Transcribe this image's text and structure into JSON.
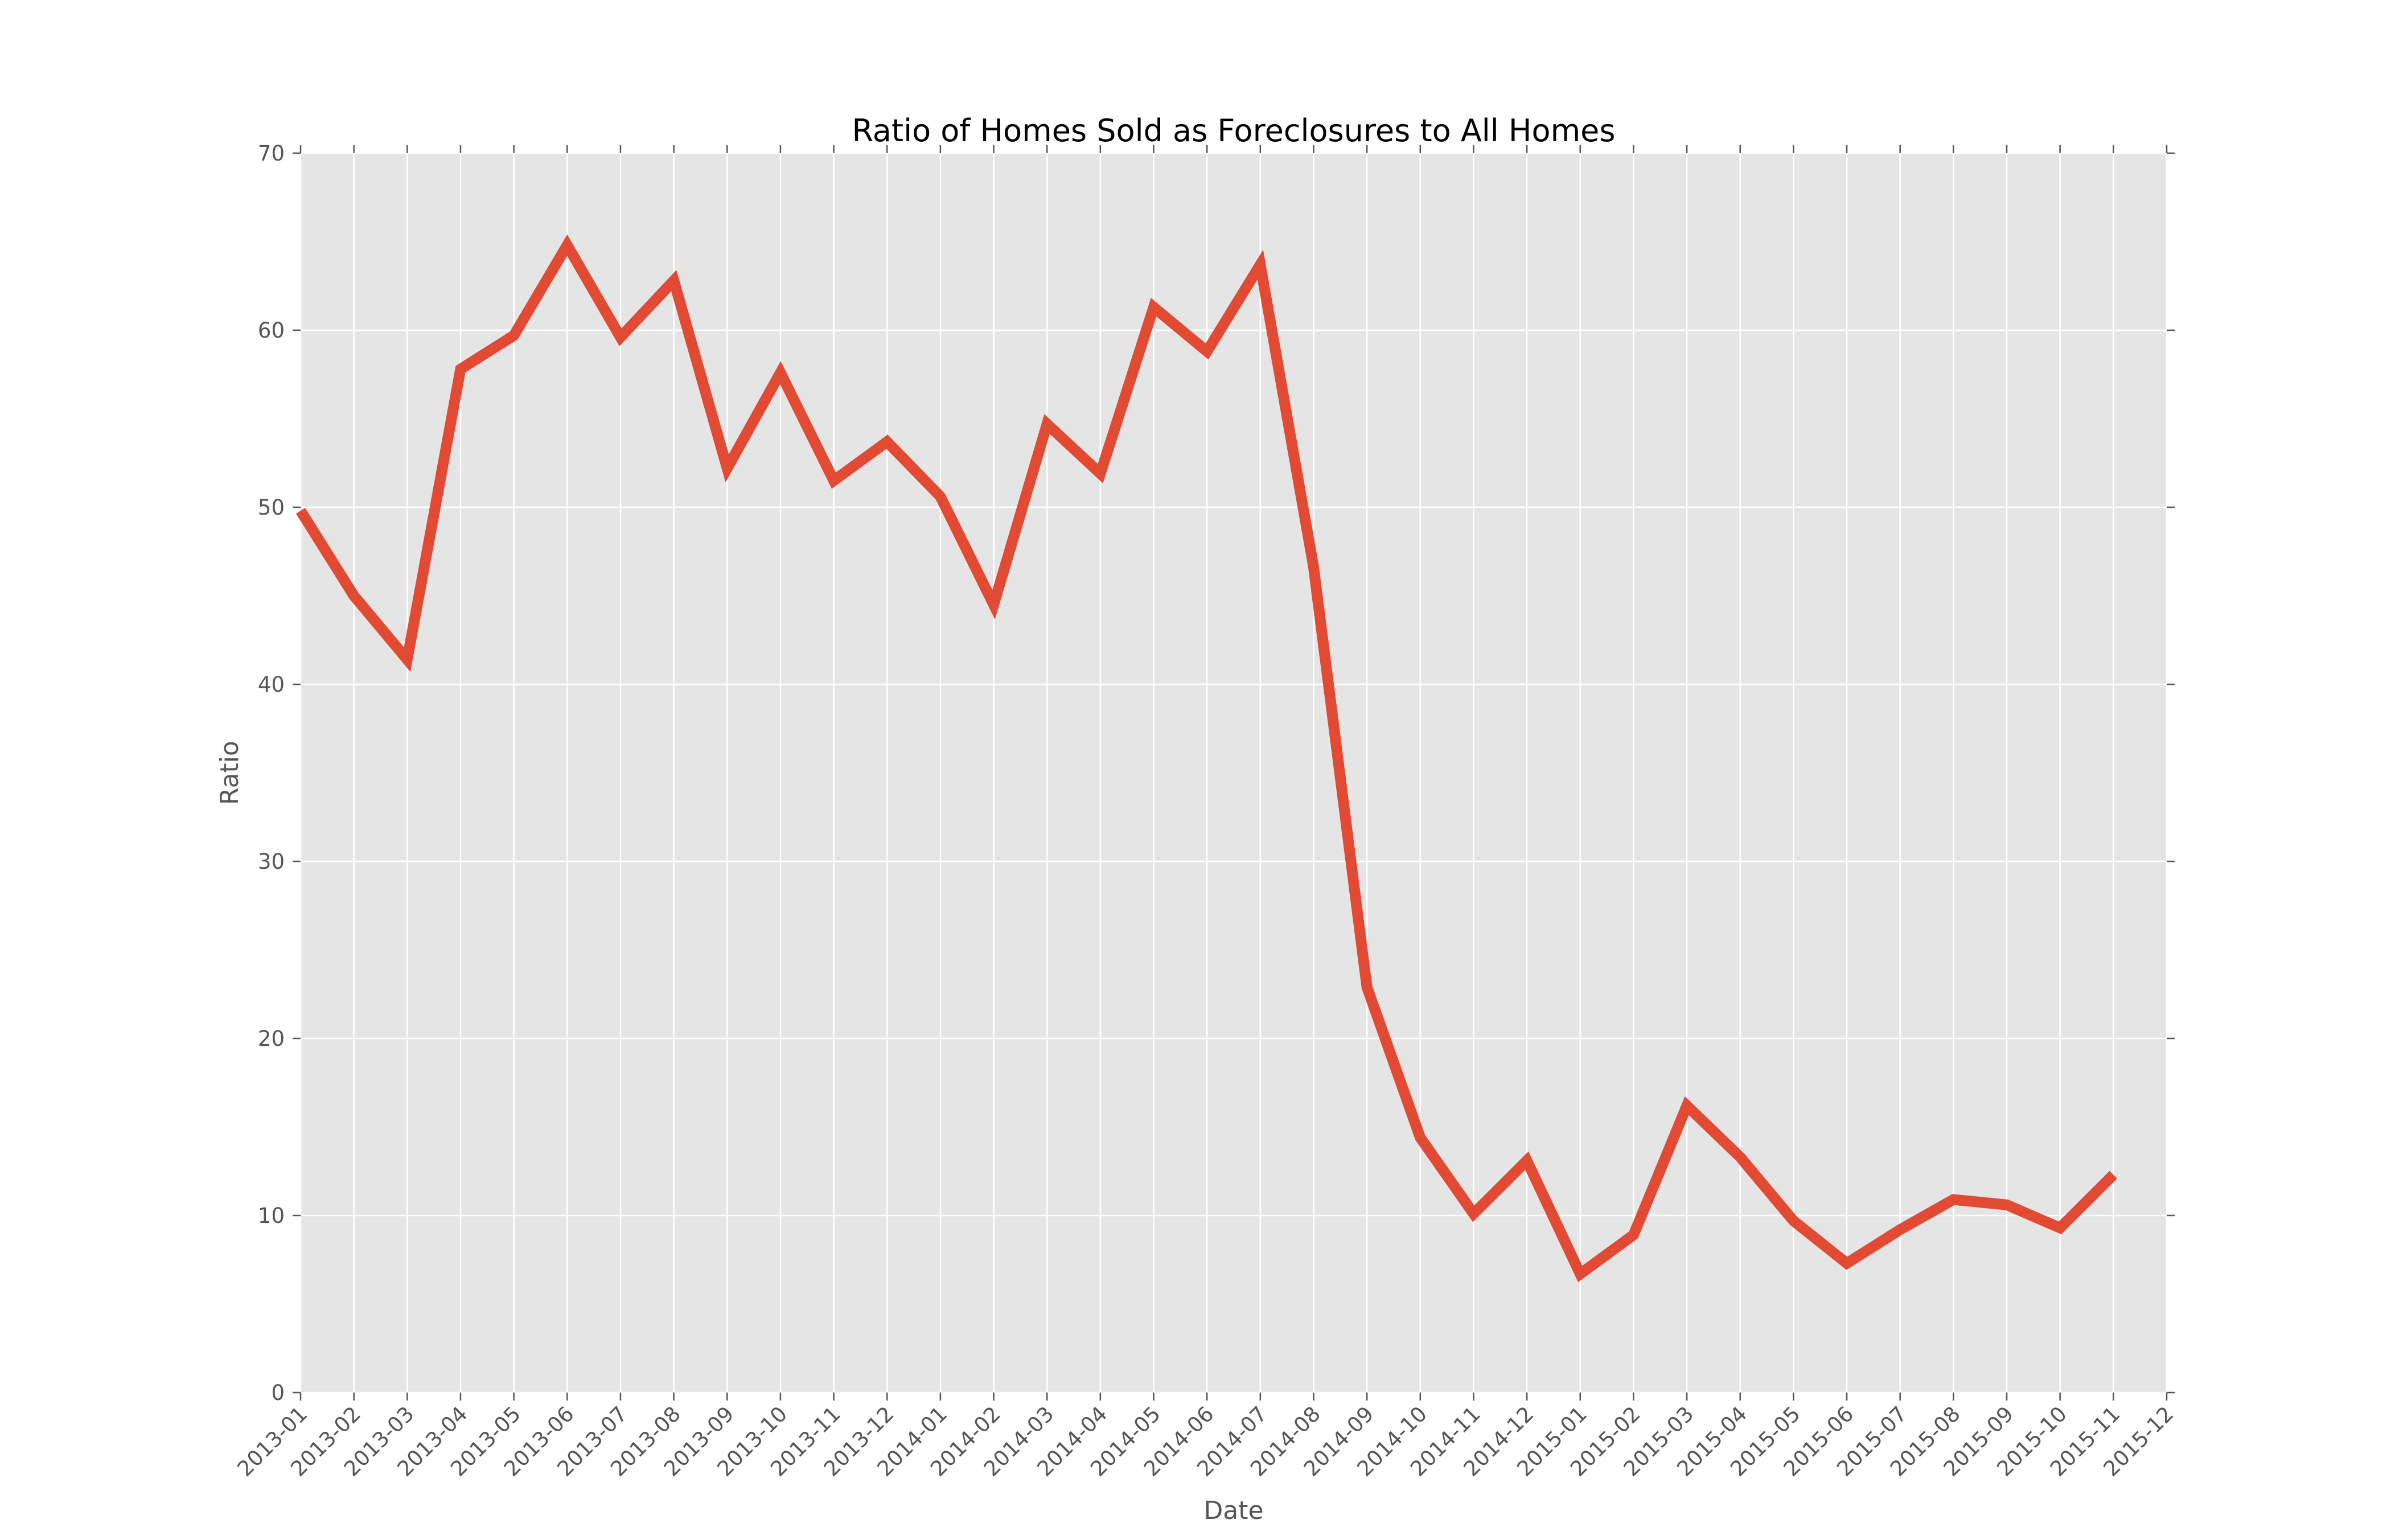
{
  "chart_data": {
    "type": "line",
    "title": "Ratio of Homes Sold as Foreclosures to All Homes",
    "xlabel": "Date",
    "ylabel": "Ratio",
    "ylim": [
      0,
      70
    ],
    "yticks": [
      "0",
      "10",
      "20",
      "30",
      "40",
      "50",
      "60",
      "70"
    ],
    "xticks": [
      "2013-01",
      "2013-02",
      "2013-03",
      "2013-04",
      "2013-05",
      "2013-06",
      "2013-07",
      "2013-08",
      "2013-09",
      "2013-10",
      "2013-11",
      "2013-12",
      "2014-01",
      "2014-02",
      "2014-03",
      "2014-04",
      "2014-05",
      "2014-06",
      "2014-07",
      "2014-08",
      "2014-09",
      "2014-10",
      "2014-11",
      "2014-12",
      "2015-01",
      "2015-02",
      "2015-03",
      "2015-04",
      "2015-05",
      "2015-06",
      "2015-07",
      "2015-08",
      "2015-09",
      "2015-10",
      "2015-11",
      "2015-12"
    ],
    "grid": true,
    "series": [
      {
        "color": "#E24A33",
        "x": [
          "2013-01",
          "2013-02",
          "2013-03",
          "2013-04",
          "2013-05",
          "2013-06",
          "2013-07",
          "2013-08",
          "2013-09",
          "2013-10",
          "2013-11",
          "2013-12",
          "2014-01",
          "2014-02",
          "2014-03",
          "2014-04",
          "2014-05",
          "2014-06",
          "2014-07",
          "2014-08",
          "2014-09",
          "2014-10",
          "2014-11",
          "2014-12",
          "2015-01",
          "2015-02",
          "2015-03",
          "2015-04",
          "2015-05",
          "2015-06",
          "2015-07",
          "2015-08",
          "2015-09",
          "2015-10",
          "2015-11"
        ],
        "values": [
          49.8,
          45.0,
          41.4,
          57.8,
          59.7,
          64.8,
          59.6,
          62.8,
          52.2,
          57.6,
          51.5,
          53.7,
          50.6,
          44.5,
          54.7,
          51.9,
          61.3,
          58.8,
          63.7,
          46.6,
          22.9,
          14.4,
          10.1,
          13.1,
          6.7,
          8.9,
          16.2,
          13.3,
          9.7,
          7.3,
          9.2,
          10.9,
          10.6,
          9.3,
          12.3
        ]
      }
    ]
  }
}
